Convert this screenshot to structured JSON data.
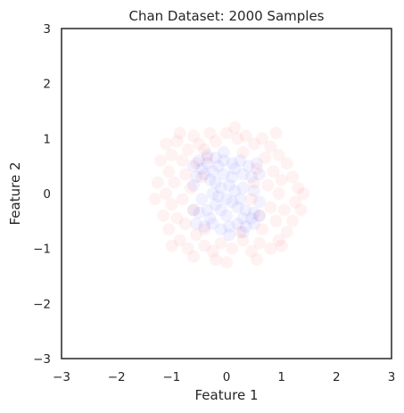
{
  "chart_data": {
    "type": "scatter",
    "title": "Chan Dataset: 2000 Samples",
    "xlabel": "Feature 1",
    "ylabel": "Feature 2",
    "xlim": [
      -3,
      3
    ],
    "ylim": [
      -3,
      3
    ],
    "x_ticks": [
      "−3",
      "−2",
      "−1",
      "0",
      "1",
      "2",
      "3"
    ],
    "y_ticks": [
      "−3",
      "−2",
      "−1",
      "0",
      "1",
      "2",
      "3"
    ],
    "grid": false,
    "point_alpha": 0.05,
    "series": [
      {
        "color": "#ff0000",
        "points": [
          [
            -1.1,
            0.9
          ],
          [
            -1.0,
            0.7
          ],
          [
            -0.9,
            0.95
          ],
          [
            -0.8,
            0.6
          ],
          [
            -1.05,
            0.4
          ],
          [
            -0.95,
            0.2
          ],
          [
            -1.1,
            0.0
          ],
          [
            -1.0,
            -0.2
          ],
          [
            -0.9,
            -0.45
          ],
          [
            -1.05,
            -0.65
          ],
          [
            -0.85,
            -0.85
          ],
          [
            -0.7,
            -1.0
          ],
          [
            -0.6,
            1.05
          ],
          [
            -0.5,
            0.9
          ],
          [
            -0.4,
            0.8
          ],
          [
            -0.7,
            0.8
          ],
          [
            -0.55,
            0.55
          ],
          [
            -0.75,
            0.35
          ],
          [
            -0.65,
            0.1
          ],
          [
            -0.8,
            -0.1
          ],
          [
            -0.6,
            -0.3
          ],
          [
            -0.75,
            -0.55
          ],
          [
            -0.55,
            -0.75
          ],
          [
            -0.4,
            -0.95
          ],
          [
            -0.3,
            1.1
          ],
          [
            -0.2,
            0.95
          ],
          [
            0.0,
            1.1
          ],
          [
            0.2,
            1.0
          ],
          [
            0.35,
            1.05
          ],
          [
            0.5,
            0.9
          ],
          [
            0.65,
            1.0
          ],
          [
            0.8,
            0.85
          ],
          [
            0.95,
            0.7
          ],
          [
            1.1,
            0.55
          ],
          [
            1.2,
            0.3
          ],
          [
            1.3,
            0.1
          ],
          [
            1.25,
            -0.15
          ],
          [
            1.35,
            -0.3
          ],
          [
            1.2,
            -0.5
          ],
          [
            1.1,
            -0.7
          ],
          [
            0.95,
            -0.85
          ],
          [
            0.8,
            -1.0
          ],
          [
            0.6,
            -0.9
          ],
          [
            0.45,
            -1.05
          ],
          [
            0.3,
            -0.85
          ],
          [
            0.1,
            -1.0
          ],
          [
            -0.1,
            -0.9
          ],
          [
            -0.25,
            -1.05
          ],
          [
            0.7,
            0.65
          ],
          [
            0.85,
            0.4
          ],
          [
            0.75,
            0.15
          ],
          [
            0.95,
            0.0
          ],
          [
            0.8,
            -0.25
          ],
          [
            0.9,
            -0.5
          ],
          [
            0.65,
            -0.65
          ],
          [
            0.55,
            0.45
          ],
          [
            0.6,
            -0.4
          ],
          [
            -0.35,
            0.65
          ],
          [
            -0.4,
            -0.65
          ],
          [
            0.3,
            0.75
          ],
          [
            0.25,
            -0.7
          ],
          [
            -1.2,
            0.6
          ],
          [
            -1.15,
            -0.4
          ],
          [
            -1.25,
            0.2
          ],
          [
            1.0,
            0.25
          ],
          [
            1.05,
            -0.3
          ],
          [
            -0.2,
            -1.2
          ],
          [
            0.15,
            1.2
          ],
          [
            -0.85,
            1.1
          ],
          [
            0.9,
            1.1
          ],
          [
            -1.0,
            -0.95
          ],
          [
            1.0,
            -0.95
          ],
          [
            -0.6,
            -1.15
          ],
          [
            0.55,
            -1.2
          ],
          [
            0.0,
            -1.25
          ],
          [
            -1.3,
            -0.1
          ],
          [
            1.4,
            0.0
          ],
          [
            -0.45,
            0.3
          ],
          [
            0.45,
            -0.1
          ],
          [
            0.5,
            0.2
          ]
        ]
      },
      {
        "color": "#0000ff",
        "points": [
          [
            -0.6,
            0.5
          ],
          [
            -0.5,
            0.6
          ],
          [
            -0.35,
            0.55
          ],
          [
            -0.2,
            0.65
          ],
          [
            -0.05,
            0.6
          ],
          [
            0.1,
            0.55
          ],
          [
            0.25,
            0.6
          ],
          [
            0.4,
            0.5
          ],
          [
            0.55,
            0.55
          ],
          [
            0.6,
            0.35
          ],
          [
            -0.55,
            0.3
          ],
          [
            -0.4,
            0.35
          ],
          [
            -0.25,
            0.4
          ],
          [
            0.3,
            0.35
          ],
          [
            0.45,
            0.3
          ],
          [
            -0.2,
            0.2
          ],
          [
            -0.1,
            0.1
          ],
          [
            0.05,
            0.15
          ],
          [
            0.15,
            0.05
          ],
          [
            -0.15,
            -0.05
          ],
          [
            0.0,
            -0.1
          ],
          [
            0.1,
            -0.15
          ],
          [
            -0.2,
            -0.2
          ],
          [
            0.2,
            -0.25
          ],
          [
            -0.35,
            -0.3
          ],
          [
            -0.5,
            -0.35
          ],
          [
            -0.6,
            -0.3
          ],
          [
            0.35,
            -0.3
          ],
          [
            0.5,
            -0.35
          ],
          [
            0.6,
            -0.4
          ],
          [
            -0.55,
            -0.55
          ],
          [
            -0.4,
            -0.6
          ],
          [
            -0.25,
            -0.55
          ],
          [
            -0.1,
            -0.65
          ],
          [
            0.05,
            -0.6
          ],
          [
            0.2,
            -0.55
          ],
          [
            0.35,
            -0.6
          ],
          [
            0.5,
            -0.55
          ],
          [
            -0.45,
            0.45
          ],
          [
            0.45,
            -0.45
          ],
          [
            -0.3,
            0.25
          ],
          [
            0.25,
            -0.1
          ],
          [
            -0.05,
            0.35
          ],
          [
            0.0,
            -0.4
          ],
          [
            -0.15,
            0.5
          ],
          [
            0.15,
            0.45
          ],
          [
            -0.3,
            -0.45
          ],
          [
            0.3,
            -0.45
          ],
          [
            0.1,
            0.3
          ],
          [
            -0.1,
            -0.3
          ],
          [
            -0.25,
            0.0
          ],
          [
            0.3,
            0.1
          ],
          [
            -0.45,
            -0.1
          ],
          [
            0.5,
            0.05
          ],
          [
            -0.6,
            0.15
          ],
          [
            0.6,
            -0.15
          ],
          [
            -0.05,
            0.75
          ],
          [
            0.05,
            -0.75
          ],
          [
            -0.35,
            0.7
          ],
          [
            0.3,
            -0.7
          ]
        ]
      }
    ]
  }
}
